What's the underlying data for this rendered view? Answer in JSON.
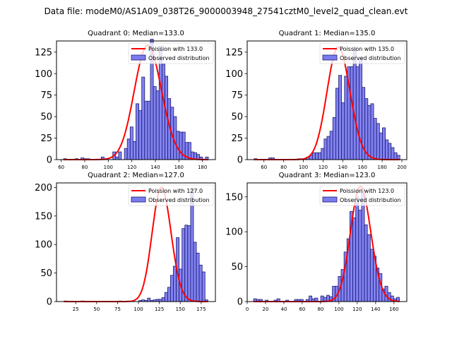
{
  "figure": {
    "suptitle": "Data file: modeM0/AS1A09_038T26_9000003948_27541cztM0_level2_quad_clean.evt"
  },
  "colors": {
    "bar_fill": "#7b7bf0",
    "bar_edge": "#1a1a70",
    "poisson_line": "#ff0000"
  },
  "chart_data": [
    {
      "type": "bar",
      "title": "Quadrant 0: Median=133.0",
      "legend": [
        "Poission with 133.0",
        "Observed distribution"
      ],
      "legend_position": "top-right",
      "xlim": [
        56,
        191
      ],
      "ylim": [
        0,
        138
      ],
      "xticks": [
        60,
        80,
        100,
        120,
        140,
        160,
        180
      ],
      "yticks": [
        0,
        25,
        50,
        75,
        100,
        125
      ],
      "bin_start": 62,
      "bin_end": 185,
      "values": [
        1,
        0,
        0,
        0,
        1,
        0,
        2,
        1,
        1,
        0,
        0,
        0,
        0,
        3,
        1,
        0,
        0,
        9,
        3,
        9,
        0,
        13,
        24,
        38,
        21,
        65,
        57,
        96,
        68,
        68,
        140,
        85,
        80,
        132,
        111,
        97,
        71,
        61,
        50,
        33,
        32,
        32,
        20,
        20,
        9,
        8,
        6,
        3,
        0,
        3
      ],
      "poisson_mean": 133.0,
      "poisson_peak": 133
    },
    {
      "type": "bar",
      "title": "Quadrant 1: Median=135.0",
      "legend": [
        "Poission with 135.0",
        "Observed distribution"
      ],
      "legend_position": "top-right",
      "xlim": [
        43,
        205
      ],
      "ylim": [
        0,
        138
      ],
      "xticks": [
        60,
        80,
        100,
        120,
        140,
        160,
        180,
        200
      ],
      "yticks": [
        0,
        25,
        50,
        75,
        100,
        125
      ],
      "bin_start": 50,
      "bin_end": 198,
      "values": [
        1,
        0,
        0,
        0,
        0,
        2,
        2,
        0,
        0,
        0,
        0,
        0,
        0,
        0,
        0,
        1,
        1,
        1,
        3,
        5,
        8,
        8,
        8,
        13,
        24,
        27,
        33,
        49,
        83,
        98,
        66,
        97,
        108,
        108,
        130,
        108,
        118,
        84,
        71,
        63,
        65,
        48,
        42,
        31,
        37,
        23,
        19,
        14,
        8,
        5
      ],
      "poisson_mean": 135.0,
      "poisson_peak": 131
    },
    {
      "type": "bar",
      "title": "Quadrant 2: Median=127.0",
      "legend": [
        "Poission with 127.0",
        "Observed distribution"
      ],
      "legend_position": "top-right",
      "xlim": [
        2,
        192
      ],
      "ylim": [
        0,
        208
      ],
      "xticks": [
        25,
        50,
        75,
        100,
        125,
        150,
        175
      ],
      "yticks": [
        0,
        50,
        100,
        150,
        200
      ],
      "bin_start": 11,
      "bin_end": 183,
      "values": [
        1,
        0,
        0,
        0,
        0,
        0,
        1,
        0,
        0,
        0,
        0,
        0,
        0,
        0,
        0,
        0,
        0,
        0,
        0,
        1,
        0,
        0,
        0,
        0,
        0,
        0,
        2,
        3,
        2,
        6,
        2,
        3,
        4,
        4,
        7,
        16,
        25,
        46,
        62,
        112,
        57,
        128,
        134,
        133,
        198,
        104,
        85,
        64,
        52,
        3
      ],
      "poisson_mean": 127.0,
      "poisson_peak": 200
    },
    {
      "type": "bar",
      "title": "Quadrant 3: Median=123.0",
      "legend": [
        "Poission with 123.0",
        "Observed distribution"
      ],
      "legend_position": "top-right",
      "xlim": [
        0,
        174
      ],
      "ylim": [
        0,
        170
      ],
      "xticks": [
        0,
        20,
        40,
        60,
        80,
        100,
        120,
        140,
        160
      ],
      "yticks": [
        0,
        50,
        100,
        150
      ],
      "bin_start": 7,
      "bin_end": 166,
      "values": [
        4,
        3,
        3,
        0,
        2,
        0,
        0,
        2,
        4,
        0,
        0,
        2,
        0,
        0,
        3,
        3,
        3,
        0,
        3,
        8,
        4,
        5,
        0,
        8,
        6,
        9,
        7,
        22,
        22,
        36,
        46,
        71,
        90,
        129,
        120,
        150,
        131,
        162,
        110,
        96,
        75,
        65,
        48,
        40,
        18,
        22,
        13,
        8,
        4,
        6
      ],
      "poisson_mean": 123.0,
      "poisson_peak": 165
    }
  ]
}
